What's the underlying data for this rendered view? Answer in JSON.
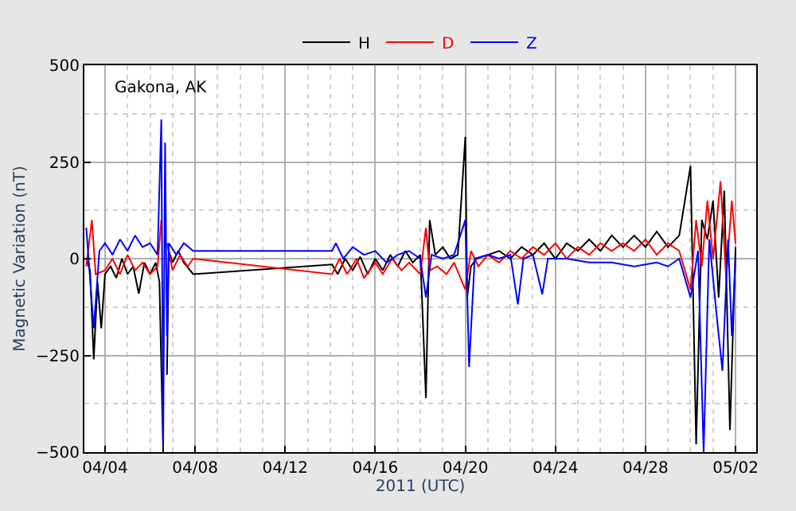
{
  "chart_data": {
    "type": "line",
    "xlabel": "2011 (UTC)",
    "ylabel": "Magnetic Variation (nT)",
    "annotations": [
      "Gakona, AK"
    ],
    "legend": "top",
    "grid": true,
    "line_style": "solid",
    "xlim": [
      "2011-04-03T02:00",
      "2011-05-02T22:00"
    ],
    "ylim": [
      -500,
      500
    ],
    "xticks": [
      {
        "value": "2011-04-04",
        "label": "04/04"
      },
      {
        "value": "2011-04-08",
        "label": "04/08"
      },
      {
        "value": "2011-04-12",
        "label": "04/12"
      },
      {
        "value": "2011-04-16",
        "label": "04/16"
      },
      {
        "value": "2011-04-20",
        "label": "04/20"
      },
      {
        "value": "2011-04-24",
        "label": "04/24"
      },
      {
        "value": "2011-04-28",
        "label": "04/28"
      },
      {
        "value": "2011-05-02",
        "label": "05/02"
      }
    ],
    "yticks": [
      {
        "value": -500,
        "label": "−500"
      },
      {
        "value": -250,
        "label": "−250"
      },
      0,
      250,
      500
    ],
    "series": [
      {
        "name": "H",
        "color": "#000000",
        "x": [
          "2011-04-03T04:00",
          "2011-04-03T08:00",
          "2011-04-03T12:00",
          "2011-04-03T16:00",
          "2011-04-03T20:00",
          "2011-04-04T00:00",
          "2011-04-04T06:00",
          "2011-04-04T12:00",
          "2011-04-04T18:00",
          "2011-04-05T00:00",
          "2011-04-05T06:00",
          "2011-04-05T12:00",
          "2011-04-05T18:00",
          "2011-04-06T00:00",
          "2011-04-06T06:00",
          "2011-04-06T10:00",
          "2011-04-06T14:00",
          "2011-04-06T16:00",
          "2011-04-06T18:00",
          "2011-04-06T20:00",
          "2011-04-07T00:00",
          "2011-04-07T06:00",
          "2011-04-07T12:00",
          "2011-04-07T22:00",
          "2011-04-14T02:00",
          "2011-04-14T08:00",
          "2011-04-14T16:00",
          "2011-04-15T00:00",
          "2011-04-15T08:00",
          "2011-04-15T16:00",
          "2011-04-16T00:00",
          "2011-04-16T08:00",
          "2011-04-16T16:00",
          "2011-04-17T00:00",
          "2011-04-17T08:00",
          "2011-04-17T16:00",
          "2011-04-18T00:00",
          "2011-04-18T06:00",
          "2011-04-18T10:00",
          "2011-04-18T16:00",
          "2011-04-19T00:00",
          "2011-04-19T08:00",
          "2011-04-19T16:00",
          "2011-04-20T00:00",
          "2011-04-20T02:00",
          "2011-04-20T06:00",
          "2011-04-20T12:00",
          "2011-04-21T00:00",
          "2011-04-21T12:00",
          "2011-04-22T00:00",
          "2011-04-22T12:00",
          "2011-04-23T00:00",
          "2011-04-23T12:00",
          "2011-04-24T00:00",
          "2011-04-24T12:00",
          "2011-04-25T00:00",
          "2011-04-25T12:00",
          "2011-04-26T00:00",
          "2011-04-26T12:00",
          "2011-04-27T00:00",
          "2011-04-27T12:00",
          "2011-04-28T00:00",
          "2011-04-28T12:00",
          "2011-04-29T00:00",
          "2011-04-29T12:00",
          "2011-04-30T00:00",
          "2011-04-30T06:00",
          "2011-04-30T12:00",
          "2011-04-30T18:00",
          "2011-05-01T00:00",
          "2011-05-01T06:00",
          "2011-05-01T12:00",
          "2011-05-01T18:00",
          "2011-05-02T00:00"
        ],
        "values": [
          0,
          -30,
          -260,
          -60,
          -180,
          -40,
          -20,
          -50,
          0,
          -40,
          -20,
          -90,
          -10,
          -40,
          -10,
          -60,
          -500,
          null,
          -300,
          20,
          -10,
          20,
          -10,
          -40,
          -15,
          -40,
          0,
          -30,
          5,
          -40,
          0,
          -30,
          10,
          -20,
          20,
          -10,
          10,
          -360,
          100,
          10,
          30,
          0,
          10,
          315,
          -100,
          -20,
          0,
          10,
          20,
          0,
          30,
          10,
          40,
          0,
          40,
          20,
          50,
          20,
          60,
          30,
          60,
          30,
          70,
          30,
          60,
          240,
          -480,
          100,
          50,
          150,
          -100,
          176,
          -443,
          30
        ]
      },
      {
        "name": "D",
        "color": "#ff0000",
        "x": [
          "2011-04-03T04:00",
          "2011-04-03T10:00",
          "2011-04-03T14:00",
          "2011-04-04T00:00",
          "2011-04-04T08:00",
          "2011-04-04T16:00",
          "2011-04-05T00:00",
          "2011-04-05T08:00",
          "2011-04-05T16:00",
          "2011-04-06T00:00",
          "2011-04-06T08:00",
          "2011-04-06T12:00",
          "2011-04-06T14:00",
          "2011-04-06T18:00",
          "2011-04-07T00:00",
          "2011-04-07T08:00",
          "2011-04-07T16:00",
          "2011-04-07T22:00",
          "2011-04-14T02:00",
          "2011-04-14T10:00",
          "2011-04-14T18:00",
          "2011-04-15T04:00",
          "2011-04-15T12:00",
          "2011-04-16T00:00",
          "2011-04-16T08:00",
          "2011-04-16T18:00",
          "2011-04-17T04:00",
          "2011-04-17T12:00",
          "2011-04-18T00:00",
          "2011-04-18T06:00",
          "2011-04-18T10:00",
          "2011-04-18T18:00",
          "2011-04-19T04:00",
          "2011-04-19T12:00",
          "2011-04-20T00:00",
          "2011-04-20T06:00",
          "2011-04-20T14:00",
          "2011-04-21T00:00",
          "2011-04-21T12:00",
          "2011-04-22T00:00",
          "2011-04-22T12:00",
          "2011-04-23T00:00",
          "2011-04-23T12:00",
          "2011-04-24T00:00",
          "2011-04-24T12:00",
          "2011-04-25T00:00",
          "2011-04-25T12:00",
          "2011-04-26T00:00",
          "2011-04-26T12:00",
          "2011-04-27T00:00",
          "2011-04-27T12:00",
          "2011-04-28T00:00",
          "2011-04-28T12:00",
          "2011-04-29T00:00",
          "2011-04-29T12:00",
          "2011-04-30T00:00",
          "2011-04-30T06:00",
          "2011-04-30T12:00",
          "2011-04-30T18:00",
          "2011-05-01T00:00",
          "2011-05-01T08:00",
          "2011-05-01T14:00",
          "2011-05-01T20:00",
          "2011-05-02T00:00"
        ],
        "values": [
          -20,
          100,
          -40,
          -30,
          0,
          -40,
          10,
          -30,
          -10,
          -40,
          -20,
          100,
          null,
          40,
          -30,
          10,
          -20,
          0,
          -40,
          0,
          -40,
          0,
          -50,
          -10,
          -40,
          0,
          -30,
          -10,
          -40,
          80,
          -30,
          -20,
          -40,
          -10,
          -80,
          20,
          -20,
          10,
          -10,
          20,
          0,
          30,
          10,
          40,
          0,
          30,
          10,
          40,
          20,
          40,
          20,
          50,
          10,
          40,
          20,
          -80,
          100,
          -20,
          150,
          0,
          200,
          -50,
          150,
          40
        ]
      },
      {
        "name": "Z",
        "color": "#0000ff",
        "x": [
          "2011-04-03T04:00",
          "2011-04-03T08:00",
          "2011-04-03T12:00",
          "2011-04-03T18:00",
          "2011-04-04T00:00",
          "2011-04-04T08:00",
          "2011-04-04T16:00",
          "2011-04-05T00:00",
          "2011-04-05T08:00",
          "2011-04-05T16:00",
          "2011-04-06T00:00",
          "2011-04-06T08:00",
          "2011-04-06T12:00",
          "2011-04-06T14:00",
          "2011-04-06T16:00",
          "2011-04-06T18:00",
          "2011-04-06T20:00",
          "2011-04-07T04:00",
          "2011-04-07T12:00",
          "2011-04-07T22:00",
          "2011-04-14T02:00",
          "2011-04-14T06:00",
          "2011-04-14T14:00",
          "2011-04-15T00:00",
          "2011-04-15T12:00",
          "2011-04-16T00:00",
          "2011-04-16T12:00",
          "2011-04-17T00:00",
          "2011-04-17T12:00",
          "2011-04-18T00:00",
          "2011-04-18T06:00",
          "2011-04-18T12:00",
          "2011-04-19T00:00",
          "2011-04-19T12:00",
          "2011-04-20T00:00",
          "2011-04-20T04:00",
          "2011-04-20T10:00",
          "2011-04-21T00:00",
          "2011-04-21T12:00",
          "2011-04-22T00:00",
          "2011-04-22T08:00",
          "2011-04-22T14:00",
          "2011-04-23T00:00",
          "2011-04-23T10:00",
          "2011-04-23T16:00",
          "2011-04-24T12:00",
          "2011-04-25T12:00",
          "2011-04-26T12:00",
          "2011-04-27T12:00",
          "2011-04-28T12:00",
          "2011-04-29T00:00",
          "2011-04-29T12:00",
          "2011-04-30T00:00",
          "2011-04-30T08:00",
          "2011-04-30T14:00",
          "2011-04-30T20:00",
          "2011-05-01T04:00",
          "2011-05-01T10:00",
          "2011-05-01T16:00",
          "2011-05-01T20:00",
          "2011-05-02T00:00"
        ],
        "values": [
          80,
          -50,
          -180,
          20,
          40,
          10,
          50,
          20,
          60,
          30,
          40,
          10,
          360,
          -480,
          300,
          -200,
          40,
          10,
          40,
          20,
          20,
          40,
          0,
          30,
          10,
          20,
          -10,
          10,
          20,
          0,
          -100,
          10,
          0,
          10,
          100,
          -280,
          0,
          10,
          0,
          10,
          -118,
          0,
          10,
          -92,
          0,
          0,
          -10,
          -10,
          -20,
          -10,
          -20,
          0,
          -100,
          20,
          -500,
          50,
          -150,
          -290,
          50,
          -200,
          0
        ]
      }
    ]
  }
}
